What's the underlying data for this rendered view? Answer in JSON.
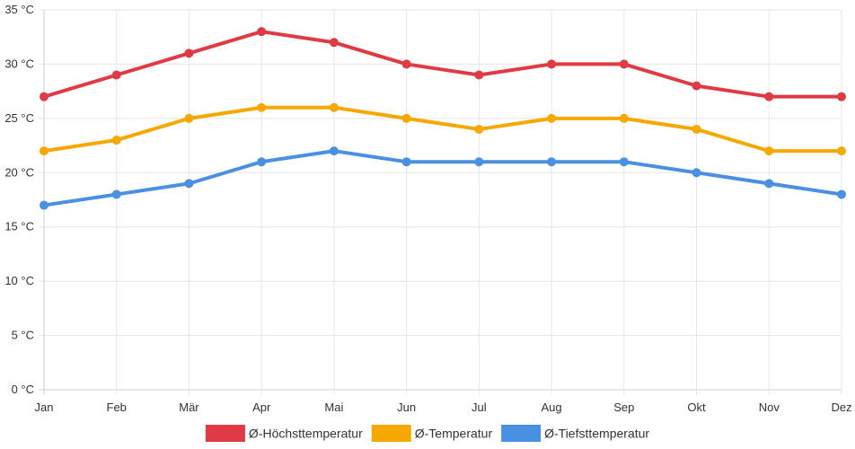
{
  "chart_data": {
    "type": "line",
    "title": "",
    "xlabel": "",
    "ylabel": "",
    "categories": [
      "Jan",
      "Feb",
      "Mär",
      "Apr",
      "Mai",
      "Jun",
      "Jul",
      "Aug",
      "Sep",
      "Okt",
      "Nov",
      "Dez"
    ],
    "ylim": [
      0,
      35
    ],
    "y_ticks": [
      0,
      5,
      10,
      15,
      20,
      25,
      30,
      35
    ],
    "y_tick_unit": " °C",
    "grid": true,
    "legend_position": "bottom-center",
    "series": [
      {
        "name": "Ø-Höchsttemperatur",
        "color": "#e03a45",
        "values": [
          27,
          29,
          31,
          33,
          32,
          30,
          29,
          30,
          30,
          28,
          27,
          27
        ]
      },
      {
        "name": "Ø-Temperatur",
        "color": "#f7a800",
        "values": [
          22,
          23,
          25,
          26,
          26,
          25,
          24,
          25,
          25,
          24,
          22,
          22
        ]
      },
      {
        "name": "Ø-Tiefsttemperatur",
        "color": "#4a90e2",
        "values": [
          17,
          18,
          19,
          21,
          22,
          21,
          21,
          21,
          21,
          20,
          19,
          18
        ]
      }
    ]
  }
}
